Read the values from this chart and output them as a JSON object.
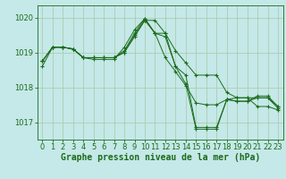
{
  "background_color": "#c5e8e8",
  "grid_color": "#a8c8a8",
  "line_color": "#1a6b1a",
  "marker_color": "#1a6b1a",
  "xlabel": "Graphe pression niveau de la mer (hPa)",
  "xlabel_fontsize": 7,
  "tick_fontsize": 6,
  "ylim": [
    1016.5,
    1020.35
  ],
  "yticks": [
    1017,
    1018,
    1019,
    1020
  ],
  "xlim": [
    -0.5,
    23.5
  ],
  "xticks": [
    0,
    1,
    2,
    3,
    4,
    5,
    6,
    7,
    8,
    9,
    10,
    11,
    12,
    13,
    14,
    15,
    16,
    17,
    18,
    19,
    20,
    21,
    22,
    23
  ],
  "series": [
    [
      1018.75,
      1019.15,
      1019.15,
      1019.1,
      1018.85,
      1018.85,
      1018.85,
      1018.85,
      1019.0,
      1019.45,
      1019.92,
      1019.55,
      1019.55,
      1018.6,
      1018.35,
      1016.85,
      1016.85,
      1016.85,
      1017.65,
      1017.7,
      1017.7,
      1017.7,
      1017.7,
      1017.45
    ],
    [
      1018.75,
      1019.15,
      1019.15,
      1019.1,
      1018.85,
      1018.85,
      1018.85,
      1018.85,
      1019.0,
      1019.5,
      1019.92,
      1019.92,
      1019.55,
      1019.05,
      1018.7,
      1018.35,
      1018.35,
      1018.35,
      1017.85,
      1017.7,
      1017.7,
      1017.45,
      1017.45,
      1017.35
    ],
    [
      1018.75,
      1019.15,
      1019.15,
      1019.1,
      1018.85,
      1018.85,
      1018.85,
      1018.85,
      1019.05,
      1019.55,
      1019.97,
      1019.55,
      1018.85,
      1018.45,
      1018.05,
      1017.55,
      1017.5,
      1017.5,
      1017.65,
      1017.6,
      1017.6,
      1017.75,
      1017.75,
      1017.45
    ],
    [
      1018.6,
      1019.15,
      1019.15,
      1019.1,
      1018.85,
      1018.8,
      1018.8,
      1018.8,
      1019.15,
      1019.65,
      1019.97,
      1019.55,
      1019.45,
      1018.6,
      1018.1,
      1016.8,
      1016.8,
      1016.8,
      1017.65,
      1017.6,
      1017.6,
      1017.7,
      1017.7,
      1017.4
    ]
  ]
}
